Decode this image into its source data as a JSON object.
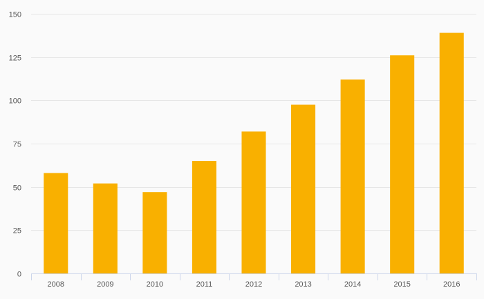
{
  "chart_data": {
    "type": "bar",
    "title": "",
    "xlabel": "",
    "ylabel": "",
    "categories": [
      "2008",
      "2009",
      "2010",
      "2011",
      "2012",
      "2013",
      "2014",
      "2015",
      "2016"
    ],
    "values": [
      58,
      52,
      47,
      65,
      82,
      97.5,
      112,
      126,
      139
    ],
    "ylim": [
      0,
      150
    ],
    "yticks": [
      0,
      25,
      50,
      75,
      100,
      125,
      150
    ],
    "grid": true,
    "legend": "none",
    "bar_color": "#f9b000",
    "grid_color": "#e6e6e6",
    "axis_color": "#ccd6eb"
  }
}
